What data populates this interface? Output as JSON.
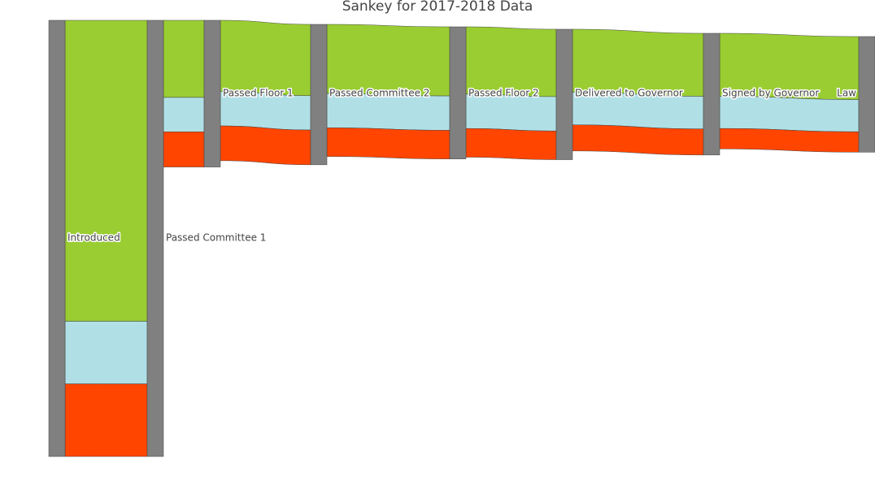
{
  "chart_data": {
    "type": "sankey",
    "title": "Sankey for 2017-2018 Data",
    "colors": {
      "node": "#808080",
      "link_categories": [
        "#9acd32",
        "#b0e0e6",
        "#ff4500"
      ]
    },
    "nodes": [
      "Introduced",
      "Passed Committee 1",
      "Passed Floor 1",
      "Passed Committee 2",
      "Passed Floor 2",
      "Delivered to Governor",
      "Signed by Governor",
      "Law"
    ],
    "flows": [
      {
        "source": "Introduced",
        "target": "Passed Committee 1",
        "values": [
          1385,
          288,
          334
        ]
      },
      {
        "source": "Passed Committee 1",
        "target": "Passed Floor 1",
        "values": [
          355,
          158,
          162
        ]
      },
      {
        "source": "Passed Floor 1",
        "target": "Passed Committee 2",
        "values": [
          328,
          158,
          160
        ]
      },
      {
        "source": "Passed Committee 2",
        "target": "Passed Floor 2",
        "values": [
          318,
          158,
          132
        ]
      },
      {
        "source": "Passed Floor 2",
        "target": "Delivered to Governor",
        "values": [
          310,
          158,
          132
        ]
      },
      {
        "source": "Delivered to Governor",
        "target": "Signed by Governor",
        "values": [
          290,
          150,
          120
        ]
      },
      {
        "source": "Signed by Governor",
        "target": "Law",
        "values": [
          290,
          148,
          94
        ]
      }
    ]
  }
}
